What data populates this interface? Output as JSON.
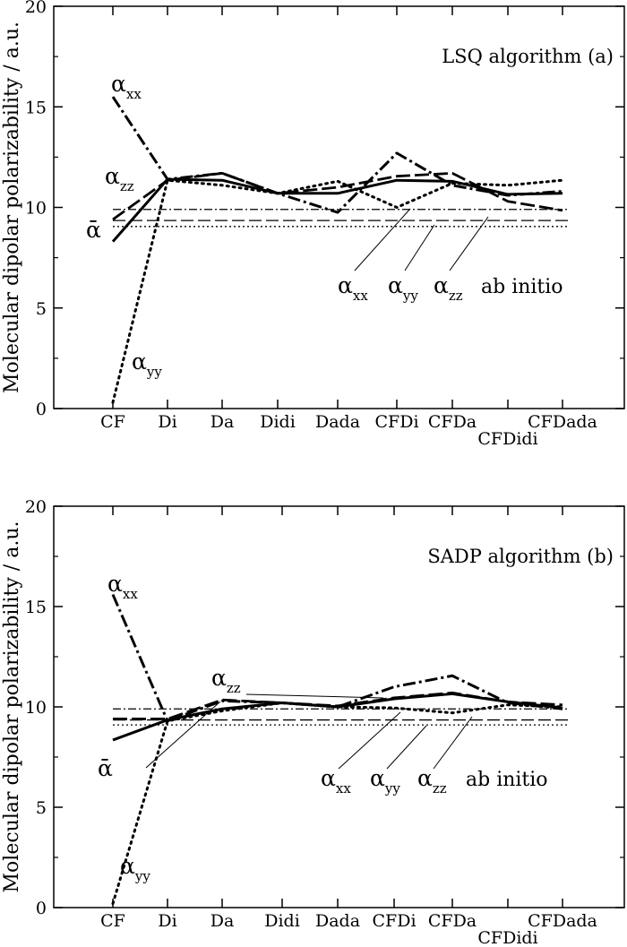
{
  "chart_data": [
    {
      "type": "line",
      "title": "LSQ algorithm (a)",
      "ylabel": "Molecular dipolar polarizability / a.u.",
      "ylim": [
        0,
        20
      ],
      "yticks": [
        0,
        5,
        10,
        15,
        20
      ],
      "categories": [
        "CF",
        "Di",
        "Da",
        "Didi",
        "Dada",
        "CFDi",
        "CFDa",
        "CFDidi",
        "CFDada"
      ],
      "series": [
        {
          "name": "ᾱ",
          "style": "solid",
          "values": [
            8.3,
            11.4,
            11.35,
            10.7,
            10.7,
            11.35,
            11.3,
            10.65,
            10.7
          ]
        },
        {
          "name": "αxx",
          "style": "dash-dot",
          "values": [
            15.5,
            11.4,
            11.7,
            10.7,
            9.75,
            12.7,
            11.1,
            10.6,
            10.8
          ]
        },
        {
          "name": "αyy",
          "style": "dotted",
          "values": [
            0.3,
            11.35,
            11.1,
            10.7,
            11.3,
            10.0,
            11.2,
            11.1,
            11.35
          ]
        },
        {
          "name": "αzz",
          "style": "dashed",
          "values": [
            9.4,
            11.35,
            11.7,
            10.7,
            11.0,
            11.55,
            11.7,
            10.3,
            9.85
          ]
        }
      ],
      "reference_lines": [
        {
          "name": "αxx ab initio",
          "style": "dash-dot",
          "value": 9.9
        },
        {
          "name": "αyy ab initio",
          "style": "dotted",
          "value": 9.05
        },
        {
          "name": "αzz ab initio",
          "style": "dashed",
          "value": 9.35
        }
      ],
      "annotations": {
        "ab_initio": "ab initio"
      }
    },
    {
      "type": "line",
      "title": "SADP algorithm (b)",
      "ylabel": "Molecular dipolar polarizability / a.u.",
      "ylim": [
        0,
        20
      ],
      "yticks": [
        0,
        5,
        10,
        15,
        20
      ],
      "categories": [
        "CF",
        "Di",
        "Da",
        "Didi",
        "Dada",
        "CFDi",
        "CFDa",
        "CFDidi",
        "CFDada"
      ],
      "series": [
        {
          "name": "ᾱ",
          "style": "solid",
          "values": [
            8.35,
            9.35,
            9.9,
            10.2,
            10.0,
            10.4,
            10.65,
            10.25,
            9.95
          ]
        },
        {
          "name": "αxx",
          "style": "dash-dot",
          "values": [
            15.6,
            9.3,
            10.3,
            10.2,
            10.0,
            11.0,
            11.55,
            10.2,
            9.9
          ]
        },
        {
          "name": "αyy",
          "style": "dotted",
          "values": [
            0.2,
            9.3,
            9.8,
            10.2,
            10.0,
            9.95,
            9.7,
            10.1,
            10.0
          ]
        },
        {
          "name": "αzz",
          "style": "dashed",
          "values": [
            9.4,
            9.4,
            10.35,
            10.2,
            10.05,
            10.45,
            10.7,
            10.25,
            10.1
          ]
        }
      ],
      "reference_lines": [
        {
          "name": "αxx ab initio",
          "style": "dash-dot",
          "value": 9.9
        },
        {
          "name": "αyy ab initio",
          "style": "dotted",
          "value": 9.1
        },
        {
          "name": "αzz ab initio",
          "style": "dashed",
          "value": 9.35
        }
      ],
      "annotations": {
        "ab_initio": "ab initio"
      }
    }
  ]
}
